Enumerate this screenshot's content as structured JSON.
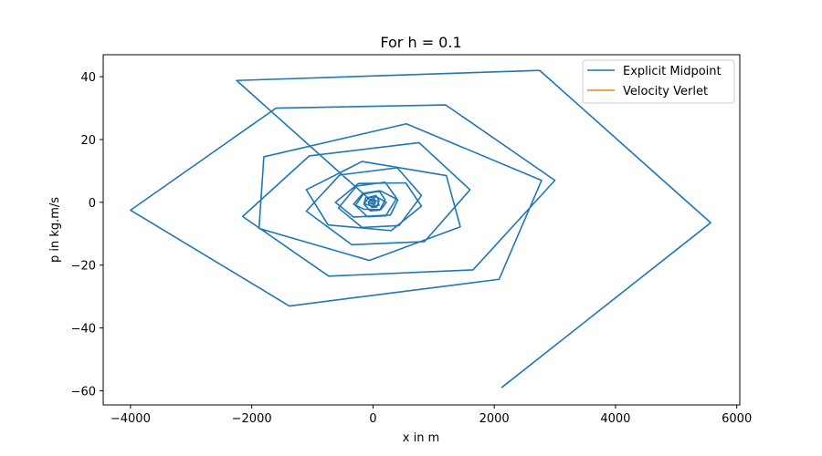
{
  "chart_data": {
    "type": "line",
    "title": "For h = 0.1",
    "xlabel": "x in m",
    "ylabel": "p in kg.m/s",
    "xlim": [
      -4450,
      6050
    ],
    "ylim": [
      -64.5,
      47
    ],
    "xticks": [
      -4000,
      -2000,
      0,
      2000,
      4000,
      6000
    ],
    "yticks": [
      -60,
      -40,
      -20,
      0,
      20,
      40
    ],
    "grid": false,
    "legend_position": "top-right",
    "series": [
      {
        "name": "Explicit Midpoint",
        "color": "#1f77b4",
        "points": [
          [
            0,
            0
          ],
          [
            12,
            0.3
          ],
          [
            -10,
            0.5
          ],
          [
            -25,
            -0.3
          ],
          [
            15,
            -0.8
          ],
          [
            40,
            0.2
          ],
          [
            20,
            1.2
          ],
          [
            -40,
            1.0
          ],
          [
            -70,
            -0.5
          ],
          [
            -20,
            -1.6
          ],
          [
            60,
            -1.5
          ],
          [
            100,
            0.5
          ],
          [
            50,
            2.2
          ],
          [
            -70,
            1.6
          ],
          [
            -150,
            -0.6
          ],
          [
            -45,
            -2.7
          ],
          [
            110,
            -2.5
          ],
          [
            200,
            0.8
          ],
          [
            100,
            3.7
          ],
          [
            -150,
            2.9
          ],
          [
            -290,
            -1.0
          ],
          [
            -90,
            -4.6
          ],
          [
            210,
            -4.3
          ],
          [
            390,
            1.3
          ],
          [
            200,
            6.4
          ],
          [
            -270,
            5.2
          ],
          [
            -570,
            -1.8
          ],
          [
            -180,
            -8.0
          ],
          [
            430,
            -7.4
          ],
          [
            800,
            2.2
          ],
          [
            400,
            11.0
          ],
          [
            -550,
            8.7
          ],
          [
            -1100,
            -2.8
          ],
          [
            -350,
            -13.5
          ],
          [
            850,
            -12.5
          ],
          [
            1600,
            4.0
          ],
          [
            760,
            19.0
          ],
          [
            -1050,
            14.8
          ],
          [
            -2150,
            -4.5
          ],
          [
            -730,
            -23.5
          ],
          [
            1650,
            -21.5
          ],
          [
            3000,
            7.0
          ],
          [
            1200,
            31.0
          ],
          [
            -1600,
            30.0
          ],
          [
            -4000,
            -2.5
          ],
          [
            -1380,
            -33.0
          ],
          [
            2080,
            -24.5
          ],
          [
            2780,
            7.0
          ],
          [
            550,
            25.0
          ],
          [
            -1800,
            14.5
          ],
          [
            -1880,
            -8.3
          ],
          [
            -60,
            -18.5
          ],
          [
            1440,
            -7.8
          ],
          [
            1210,
            8.5
          ],
          [
            -180,
            13.0
          ],
          [
            -1100,
            4.0
          ],
          [
            -740,
            -7.2
          ],
          [
            300,
            -9.0
          ],
          [
            800,
            -1.2
          ],
          [
            540,
            6.2
          ],
          [
            -240,
            6.0
          ],
          [
            -620,
            0.0
          ],
          [
            -320,
            -4.7
          ],
          [
            290,
            -4.0
          ],
          [
            410,
            0.8
          ],
          [
            130,
            3.6
          ],
          [
            -180,
            2.6
          ],
          [
            -320,
            -0.6
          ],
          [
            -150,
            -2.2
          ],
          [
            130,
            -2.3
          ],
          [
            220,
            0.0
          ],
          [
            60,
            1.7
          ],
          [
            -120,
            1.5
          ],
          [
            -150,
            -0.5
          ],
          [
            0,
            -1.2
          ],
          [
            100,
            -0.9
          ],
          [
            80,
            0.4
          ],
          [
            -40,
            0.9
          ],
          [
            -80,
            0.1
          ],
          [
            -20,
            -0.5
          ],
          [
            40,
            -0.3
          ],
          [
            10,
            0.2
          ],
          [
            0,
            0
          ],
          [
            -2250,
            38.8
          ],
          [
            2750,
            42.0
          ],
          [
            5570,
            -6.5
          ],
          [
            2120,
            -59.0
          ]
        ]
      },
      {
        "name": "Velocity Verlet",
        "color": "#ff7f0e",
        "points": [
          [
            0,
            0
          ],
          [
            3,
            0.05
          ],
          [
            -2,
            -0.04
          ],
          [
            0,
            0
          ]
        ]
      }
    ]
  }
}
